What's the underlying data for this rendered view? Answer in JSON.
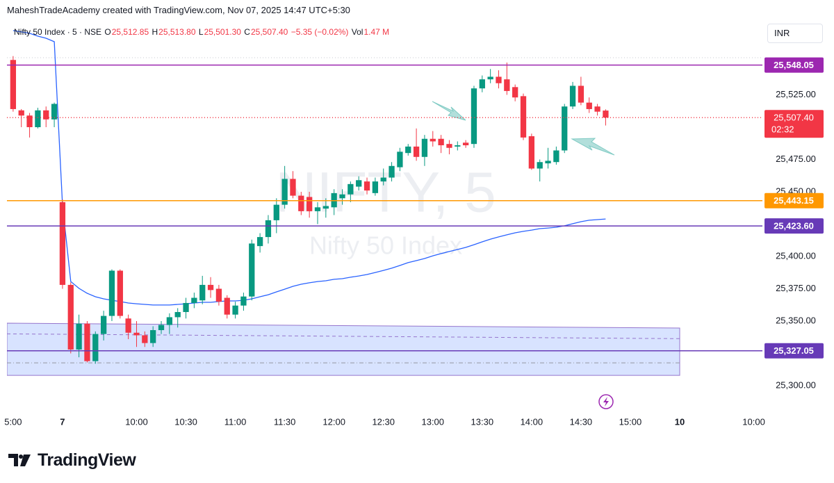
{
  "header": {
    "text": "MaheshTradeAcademy created with TradingView.com, Nov 07, 2025 14:47 UTC+5:30"
  },
  "legend": {
    "symbol": "Nifty 50 Index · 5 · NSE",
    "items": [
      {
        "key": "O",
        "value": "25,512.85"
      },
      {
        "key": "H",
        "value": "25,513.80"
      },
      {
        "key": "L",
        "value": "25,501.30"
      },
      {
        "key": "C",
        "value": "25,507.40"
      }
    ],
    "change": "−5.35 (−0.02%)",
    "volume_key": "Vol",
    "volume": "1.47 M"
  },
  "currency": "INR",
  "watermark": {
    "symbol": "NIFTY, 5",
    "name": "Nifty 50 Index"
  },
  "brand": "TradingView",
  "chart_data": {
    "type": "candlestick",
    "up_color": "#089981",
    "down_color": "#f23645",
    "open": [
      25552,
      25513,
      25509,
      25500,
      25513,
      25506,
      25442,
      25378,
      25328,
      25348,
      25319,
      25340,
      25354,
      25389,
      25352,
      25341,
      25339,
      25333,
      25343,
      25347,
      25353,
      25357,
      25364,
      25366,
      25378,
      25375,
      25368,
      25355,
      25362,
      25369,
      25408,
      25415,
      25428,
      25440,
      25460,
      25447,
      25446,
      25435,
      25437,
      25438,
      25445,
      25448,
      25454,
      25458,
      25449,
      25458,
      25461,
      25469,
      25480,
      25485,
      25477,
      25491,
      25491,
      25487,
      25485,
      25488,
      25487,
      25530,
      25537,
      25539,
      25537,
      25531,
      25524,
      25493,
      25468,
      25472,
      25473,
      25482,
      25516,
      25532,
      25519,
      25516,
      25512.85
    ],
    "high": [
      25555,
      25514,
      25511,
      25515,
      25516,
      25519,
      25444,
      25380,
      25355,
      25350,
      25342,
      25358,
      25390,
      25390,
      25355,
      25350,
      25342,
      25346,
      25350,
      25356,
      25360,
      25368,
      25372,
      25385,
      25384,
      25378,
      25370,
      25365,
      25372,
      25413,
      25418,
      25432,
      25445,
      25470,
      25466,
      25450,
      25450,
      25442,
      25445,
      25452,
      25452,
      25458,
      25462,
      25461,
      25461,
      25468,
      25473,
      25484,
      25487,
      25499,
      25494,
      25497,
      25494,
      25490,
      25489,
      25490,
      25532,
      25540,
      25545,
      25544,
      25550,
      25533,
      25526,
      25495,
      25475,
      25484,
      25485,
      25518,
      25535,
      25539,
      25523,
      25518,
      25513.8
    ],
    "low": [
      25512,
      25500,
      25492,
      25499,
      25500,
      25500,
      25375,
      25325,
      25322,
      25318,
      25317,
      25335,
      25350,
      25352,
      25336,
      25330,
      25330,
      25330,
      25340,
      25340,
      25345,
      25352,
      25360,
      25363,
      25368,
      25362,
      25352,
      25352,
      25358,
      25366,
      25403,
      25410,
      25418,
      25437,
      25445,
      25432,
      25430,
      25425,
      25430,
      25432,
      25440,
      25442,
      25451,
      25448,
      25447,
      25455,
      25458,
      25466,
      25478,
      25474,
      25470,
      25485,
      25480,
      25479,
      25482,
      25484,
      25484,
      25527,
      25534,
      25530,
      25525,
      25520,
      25490,
      25467,
      25458,
      25468,
      25471,
      25480,
      25514,
      25517,
      25511,
      25509,
      25501.3
    ],
    "close": [
      25514,
      25509,
      25500,
      25513,
      25506,
      25518,
      25378,
      25328,
      25348,
      25319,
      25340,
      25354,
      25389,
      25354,
      25341,
      25339,
      25333,
      25343,
      25347,
      25353,
      25357,
      25364,
      25368,
      25378,
      25374,
      25365,
      25355,
      25362,
      25369,
      25410,
      25415,
      25428,
      25440,
      25460,
      25447,
      25435,
      25435,
      25438,
      25439,
      25449,
      25448,
      25456,
      25459,
      25451,
      25458,
      25461,
      25470,
      25481,
      25485,
      25477,
      25491,
      25489,
      25486,
      25484,
      25486,
      25486,
      25530,
      25537,
      25539,
      25534,
      25528,
      25523,
      25492,
      25468,
      25473,
      25474,
      25482,
      25516,
      25532,
      25519,
      25514,
      25512,
      25507.4
    ],
    "moving_average": {
      "color": "#2962ff",
      "values": [
        25574.7,
        25573.7,
        25572.6,
        25570.4,
        25568.8,
        25566.1,
        25440,
        25380.6,
        25375.3,
        25371.5,
        25368.8,
        25367.2,
        25366.1,
        25365.1,
        25364,
        25363.4,
        25362.9,
        25362.4,
        25362.4,
        25362.4,
        25362.9,
        25363.4,
        25364,
        25364.5,
        25364.5,
        25365.1,
        25365.6,
        25365.6,
        25366.1,
        25367.2,
        25368.8,
        25370.4,
        25372.6,
        25374.7,
        25376.9,
        25378.5,
        25379.6,
        25380.6,
        25381.2,
        25382.3,
        25382.8,
        25383.9,
        25384.9,
        25386,
        25387.6,
        25389.2,
        25390.9,
        25393,
        25395.2,
        25396.8,
        25398.4,
        25400.5,
        25402.2,
        25403.8,
        25405.4,
        25407,
        25409.1,
        25411.3,
        25413.4,
        25415.1,
        25416.7,
        25418.3,
        25419.4,
        25420.4,
        25421.5,
        25422,
        25422.6,
        25423.7,
        25425.3,
        25426.9,
        25428,
        25428.5,
        25429
      ]
    },
    "levels": [
      {
        "value": 25548.05,
        "label": "25,548.05",
        "color": "#9c27b0"
      },
      {
        "value": 25443.15,
        "label": "25,443.15",
        "color": "#ff9800"
      },
      {
        "value": 25423.6,
        "label": "25,423.60",
        "color": "#673ab7"
      },
      {
        "value": 25327.05,
        "label": "25,327.05",
        "color": "#673ab7"
      }
    ],
    "last_price": {
      "value": 25507.4,
      "label": "25,507.40",
      "countdown": "02:32",
      "color": "#f23645"
    },
    "zone": {
      "top": [
        25348.4,
        25344.6
      ],
      "bottom": [
        25308,
        25308
      ],
      "x_end": 81,
      "color": "#9575cd",
      "mid_lines": [
        [
          25340.1,
          25336.4
        ],
        [
          25317.7,
          25317.7
        ]
      ]
    },
    "xlim": [
      -0.75,
      91.05
    ],
    "ylim": [
      25278.5,
      25582.25
    ],
    "grid": false,
    "yticks": [
      {
        "value": 25300,
        "label": "25,300.00"
      },
      {
        "value": 25350,
        "label": "25,350.00"
      },
      {
        "value": 25375,
        "label": "25,375.00"
      },
      {
        "value": 25400,
        "label": "25,400.00"
      },
      {
        "value": 25450,
        "label": "25,450.00"
      },
      {
        "value": 25475,
        "label": "25,475.00"
      },
      {
        "value": 25525,
        "label": "25,525.00"
      }
    ],
    "xticks": [
      {
        "value": 0,
        "label": "5:00"
      },
      {
        "value": 6,
        "label": "7"
      },
      {
        "value": 15,
        "label": "10:00"
      },
      {
        "value": 21,
        "label": "10:30"
      },
      {
        "value": 27,
        "label": "11:00"
      },
      {
        "value": 33,
        "label": "11:30"
      },
      {
        "value": 39,
        "label": "12:00"
      },
      {
        "value": 45,
        "label": "12:30"
      },
      {
        "value": 51,
        "label": "13:00"
      },
      {
        "value": 57,
        "label": "13:30"
      },
      {
        "value": 63,
        "label": "14:00"
      },
      {
        "value": 69,
        "label": "14:30"
      },
      {
        "value": 75,
        "label": "15:00"
      },
      {
        "value": 81,
        "label": "10"
      },
      {
        "value": 90,
        "label": "10:00"
      }
    ]
  }
}
